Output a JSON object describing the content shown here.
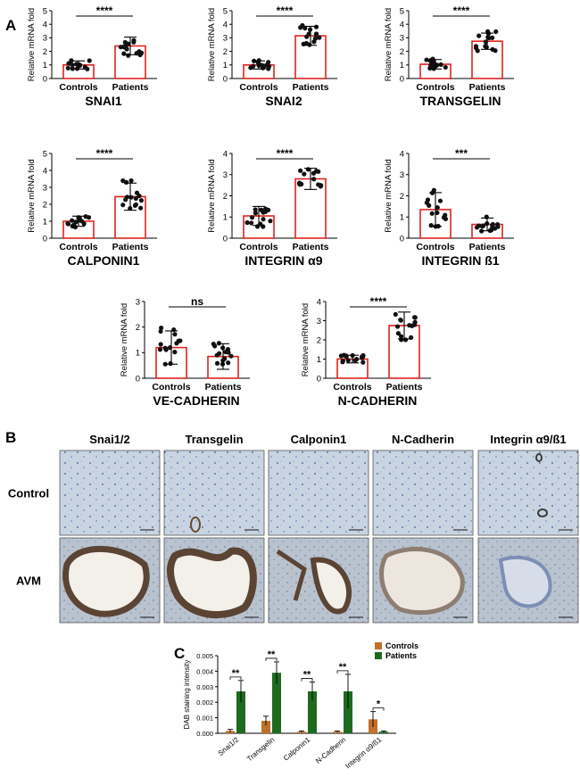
{
  "panel_labels": {
    "a": "A",
    "b": "B",
    "c": "C"
  },
  "chart_data": [
    {
      "type": "bar",
      "title": "SNAI1",
      "ylabel": "Relative mRNA fold",
      "categories": [
        "Controls",
        "Patients"
      ],
      "values": [
        1.0,
        2.4
      ],
      "errors": [
        0.3,
        0.65
      ],
      "ylim": [
        0,
        5
      ],
      "yticks": [
        0,
        1,
        2,
        3,
        4,
        5
      ],
      "significance": "****"
    },
    {
      "type": "bar",
      "title": "SNAI2",
      "ylabel": "Relative mRNA fold",
      "categories": [
        "Controls",
        "Patients"
      ],
      "values": [
        1.0,
        3.15
      ],
      "errors": [
        0.3,
        0.7
      ],
      "ylim": [
        0,
        5
      ],
      "yticks": [
        0,
        1,
        2,
        3,
        4,
        5
      ],
      "significance": "****"
    },
    {
      "type": "bar",
      "title": "TRANSGELIN",
      "ylabel": "Relative mRNA fold",
      "categories": [
        "Controls",
        "Patients"
      ],
      "values": [
        1.05,
        2.75
      ],
      "errors": [
        0.35,
        0.6
      ],
      "ylim": [
        0,
        5
      ],
      "yticks": [
        0,
        1,
        2,
        3,
        4,
        5
      ],
      "significance": "****"
    },
    {
      "type": "bar",
      "title": "CALPONIN1",
      "ylabel": "Relative mRNA fold",
      "categories": [
        "Controls",
        "Patients"
      ],
      "values": [
        1.0,
        2.45
      ],
      "errors": [
        0.3,
        0.8
      ],
      "ylim": [
        0,
        5
      ],
      "yticks": [
        0,
        1,
        2,
        3,
        4,
        5
      ],
      "significance": "****"
    },
    {
      "type": "bar",
      "title": "INTEGRIN α9",
      "ylabel": "Relative mRNA fold",
      "categories": [
        "Controls",
        "Patients"
      ],
      "values": [
        1.05,
        2.8
      ],
      "errors": [
        0.45,
        0.5
      ],
      "ylim": [
        0,
        4
      ],
      "yticks": [
        0,
        1,
        2,
        3,
        4
      ],
      "significance": "****"
    },
    {
      "type": "bar",
      "title": "INTEGRIN ß1",
      "ylabel": "Relative mRNA fold",
      "categories": [
        "Controls",
        "Patients"
      ],
      "values": [
        1.35,
        0.65
      ],
      "errors": [
        0.8,
        0.3
      ],
      "ylim": [
        0,
        4
      ],
      "yticks": [
        0,
        1,
        2,
        3,
        4
      ],
      "significance": "***"
    },
    {
      "type": "bar",
      "title": "VE-CADHERIN",
      "ylabel": "Relative mRNA fold",
      "categories": [
        "Controls",
        "Patients"
      ],
      "values": [
        1.2,
        0.85
      ],
      "errors": [
        0.65,
        0.5
      ],
      "ylim": [
        0,
        3
      ],
      "yticks": [
        0,
        1,
        2,
        3
      ],
      "significance": "ns"
    },
    {
      "type": "bar",
      "title": "N-CADHERIN",
      "ylabel": "Relative mRNA fold",
      "categories": [
        "Controls",
        "Patients"
      ],
      "values": [
        1.0,
        2.75
      ],
      "errors": [
        0.2,
        0.7
      ],
      "ylim": [
        0,
        4
      ],
      "yticks": [
        0,
        1,
        2,
        3,
        4
      ],
      "significance": "****"
    },
    {
      "type": "bar",
      "ylabel": "DAB staining intensity",
      "categories": [
        "Snai1/2",
        "Transgelin",
        "Calponin1",
        "N-Cadherin",
        "Integrin α9/ß1"
      ],
      "series": [
        {
          "name": "Controls",
          "color": "#c0702a",
          "values": [
            0.00015,
            0.0008,
            0.0001,
            0.0001,
            0.0009
          ],
          "errors": [
            0.0001,
            0.0003,
            5e-05,
            5e-05,
            0.0005
          ]
        },
        {
          "name": "Patients",
          "color": "#1e6a1e",
          "values": [
            0.0027,
            0.0039,
            0.0027,
            0.0027,
            0.0001
          ],
          "errors": [
            0.0007,
            0.0007,
            0.0006,
            0.0011,
            5e-05
          ]
        }
      ],
      "ylim": [
        0,
        0.005
      ],
      "yticks": [
        "0.000",
        "0.001",
        "0.002",
        "0.003",
        "0.004",
        "0.005"
      ],
      "significance": [
        "**",
        "**",
        "**",
        "**",
        "*"
      ],
      "legend": "top-right"
    }
  ],
  "histology": {
    "columns": [
      "Snai1/2",
      "Transgelin",
      "Calponin1",
      "N-Cadherin",
      "Integrin α9/ß1"
    ],
    "rows": [
      "Control",
      "AVM"
    ]
  }
}
